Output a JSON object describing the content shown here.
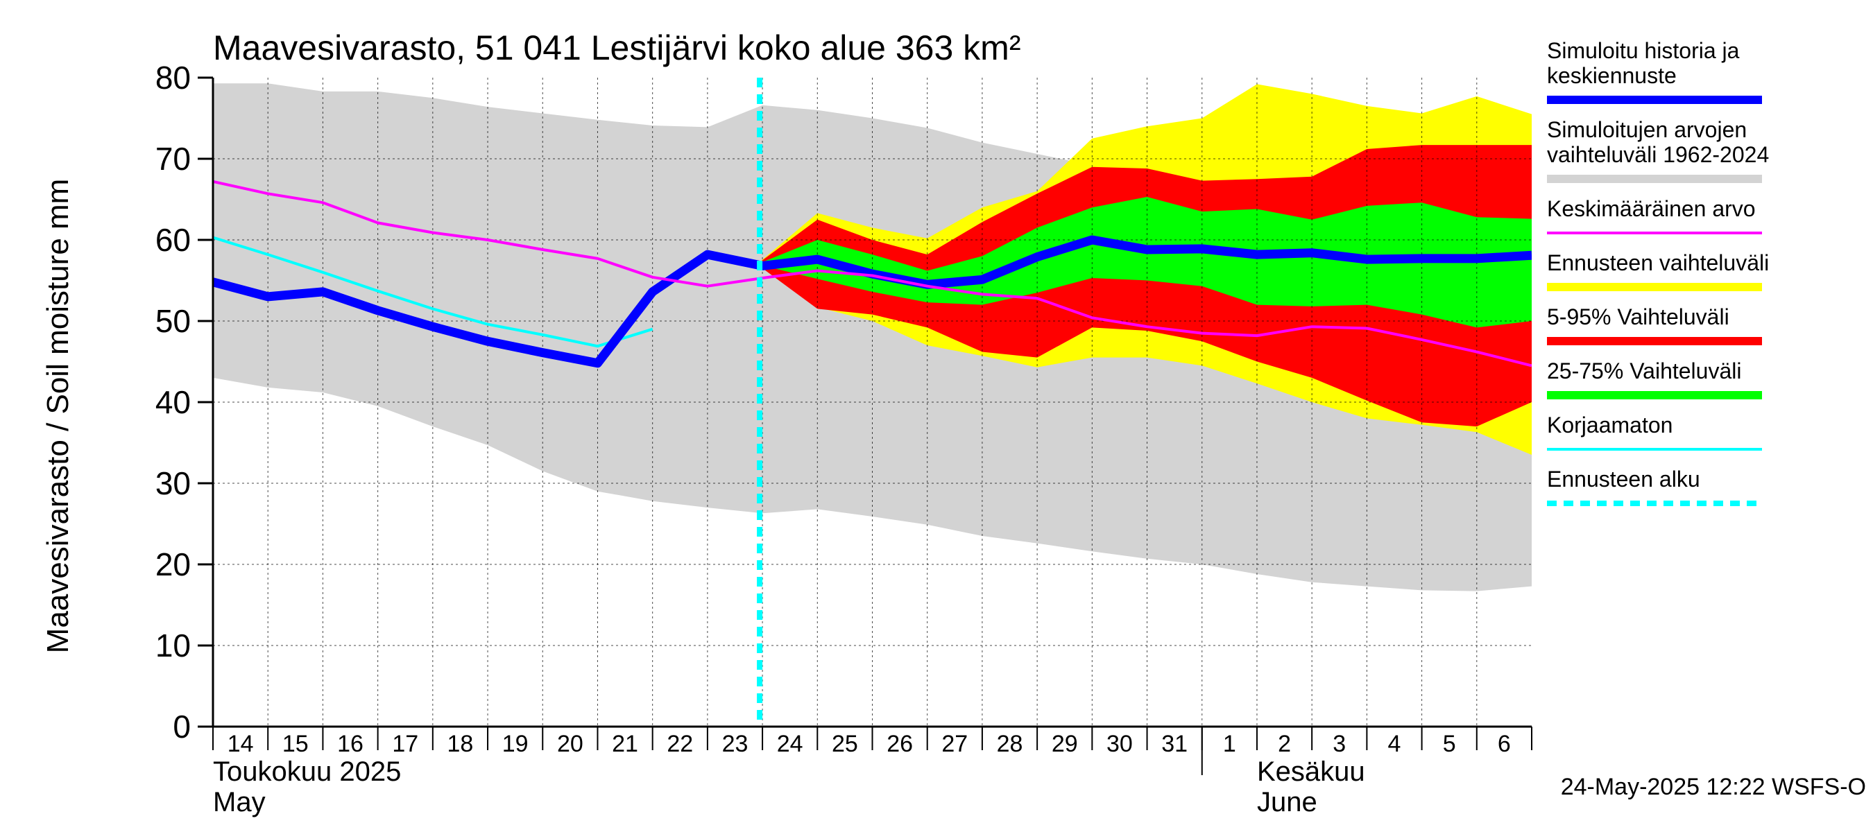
{
  "chart_data": {
    "type": "area",
    "title": "Maavesivarasto, 51 041 Lestijärvi koko alue 363 km²",
    "ylabel": "Maavesivarasto / Soil moisture   mm",
    "ylim": [
      0,
      80
    ],
    "yticks": [
      0,
      10,
      20,
      30,
      40,
      50,
      60,
      70,
      80
    ],
    "day_labels": [
      "14",
      "15",
      "16",
      "17",
      "18",
      "19",
      "20",
      "21",
      "22",
      "23",
      "24",
      "25",
      "26",
      "27",
      "28",
      "29",
      "30",
      "31",
      "1",
      "2",
      "3",
      "4",
      "5",
      "6"
    ],
    "month_labels": [
      {
        "fi": "Toukokuu  2025",
        "en": "May"
      },
      {
        "fi": "Kesäkuu",
        "en": "June"
      }
    ],
    "forecast_start_index": 10,
    "hist_range": {
      "x": [
        0,
        1,
        2,
        3,
        4,
        5,
        6,
        7,
        8,
        9,
        10,
        11,
        12,
        13,
        14,
        15,
        16,
        17,
        18,
        19,
        20,
        21,
        22,
        23,
        24
      ],
      "upper": [
        79.3,
        79.3,
        78.3,
        78.3,
        77.5,
        76.4,
        75.6,
        74.8,
        74.1,
        73.9,
        76.6,
        76.0,
        75.0,
        73.8,
        72.0,
        70.6,
        69.2,
        69.2,
        70.2,
        71.0,
        70.6,
        72.0,
        72.0,
        69.8,
        67.2
      ],
      "lower": [
        43.0,
        41.8,
        41.2,
        39.5,
        37.0,
        34.7,
        31.5,
        29.0,
        27.8,
        27.0,
        26.3,
        26.8,
        25.9,
        24.9,
        23.5,
        22.6,
        21.6,
        20.7,
        20.0,
        18.8,
        17.8,
        17.3,
        16.8,
        16.7,
        17.3
      ]
    },
    "forecast_range": {
      "x": [
        9.9,
        11,
        12,
        13,
        14,
        15,
        16,
        17,
        18,
        19,
        20,
        21,
        22,
        23,
        24
      ],
      "upper": [
        57.0,
        63.3,
        61.5,
        60.2,
        64.0,
        66.0,
        72.5,
        74.0,
        75.0,
        79.2,
        78.0,
        76.5,
        75.6,
        77.7,
        75.5
      ],
      "lower": [
        57.0,
        51.7,
        50.0,
        47.0,
        45.7,
        44.3,
        45.5,
        45.5,
        44.5,
        42.3,
        40.0,
        38.0,
        37.2,
        36.3,
        33.5
      ]
    },
    "p5_95": {
      "x": [
        9.9,
        11,
        12,
        13,
        14,
        15,
        16,
        17,
        18,
        19,
        20,
        21,
        22,
        23,
        24
      ],
      "upper": [
        57.0,
        62.5,
        60.0,
        58.2,
        62.2,
        65.7,
        69.0,
        68.8,
        67.3,
        67.5,
        67.8,
        71.2,
        71.7,
        71.7,
        71.7
      ],
      "lower": [
        57.0,
        51.5,
        50.8,
        49.2,
        46.2,
        45.5,
        49.2,
        48.8,
        47.5,
        45.0,
        43.0,
        40.2,
        37.5,
        37.0,
        40.0
      ]
    },
    "p25_75": {
      "x": [
        9.9,
        11,
        12,
        13,
        14,
        15,
        16,
        17,
        18,
        19,
        20,
        21,
        22,
        23,
        24
      ],
      "upper": [
        57.0,
        60.0,
        58.2,
        56.2,
        58.0,
        61.5,
        64.0,
        65.3,
        63.5,
        63.8,
        62.5,
        64.2,
        64.6,
        62.8,
        62.6
      ],
      "lower": [
        57.0,
        55.2,
        53.6,
        52.3,
        52.0,
        53.5,
        55.3,
        55.0,
        54.3,
        52.0,
        51.8,
        52.0,
        50.8,
        49.2,
        50.0
      ]
    },
    "series": [
      {
        "name": "Simuloitu historia ja keskiennuste",
        "color": "#0000ff",
        "x": [
          0,
          1,
          2,
          3,
          4,
          5,
          6,
          7,
          8,
          9,
          10,
          11,
          12,
          13,
          14,
          15,
          16,
          17,
          18,
          19,
          20,
          21,
          22,
          23,
          24
        ],
        "values": [
          54.8,
          53.0,
          53.6,
          51.3,
          49.3,
          47.5,
          46.1,
          44.8,
          53.6,
          58.2,
          56.8,
          57.6,
          55.8,
          54.5,
          55.1,
          57.9,
          60.0,
          58.8,
          58.9,
          58.2,
          58.4,
          57.6,
          57.7,
          57.7,
          58.1
        ]
      },
      {
        "name": "Keskimääräinen arvo",
        "color": "#ff00ff",
        "x": [
          0,
          1,
          2,
          3,
          4,
          5,
          6,
          7,
          8,
          9,
          10,
          11,
          12,
          13,
          14,
          15,
          16,
          17,
          18,
          19,
          20,
          21,
          22,
          23,
          24
        ],
        "values": [
          67.2,
          65.7,
          64.6,
          62.1,
          60.9,
          60.0,
          58.8,
          57.7,
          55.4,
          54.3,
          55.3,
          56.2,
          55.6,
          54.3,
          53.3,
          52.8,
          50.4,
          49.3,
          48.5,
          48.2,
          49.3,
          49.1,
          47.7,
          46.2,
          44.5
        ]
      },
      {
        "name": "Korjaamaton",
        "color": "#00ffff",
        "x": [
          0,
          1,
          2,
          3,
          4,
          5,
          6,
          7,
          8
        ],
        "values": [
          60.3,
          58.2,
          56.0,
          53.7,
          51.5,
          49.6,
          48.3,
          46.9,
          49.0
        ]
      }
    ],
    "legend": [
      {
        "label": "Simuloitu historia ja keskiennuste",
        "color": "#0000ff",
        "style": "thick"
      },
      {
        "label": "Simuloitujen arvojen vaihteluväli 1962-2024",
        "color": "#d3d3d3",
        "style": "thick"
      },
      {
        "label": "Keskimääräinen arvo",
        "color": "#ff00ff",
        "style": "thin"
      },
      {
        "label": "Ennusteen vaihteluväli",
        "color": "#ffff00",
        "style": "thick"
      },
      {
        "label": "5-95% Vaihteluväli",
        "color": "#ff0000",
        "style": "thick"
      },
      {
        "label": "25-75% Vaihteluväli",
        "color": "#00ff00",
        "style": "thick"
      },
      {
        "label": "Korjaamaton",
        "color": "#00ffff",
        "style": "thin"
      },
      {
        "label": "Ennusteen alku",
        "color": "#00ffff",
        "style": "dashed"
      }
    ],
    "grid": true,
    "legend_position": "right"
  },
  "footer": "24-May-2025 12:22 WSFS-O"
}
